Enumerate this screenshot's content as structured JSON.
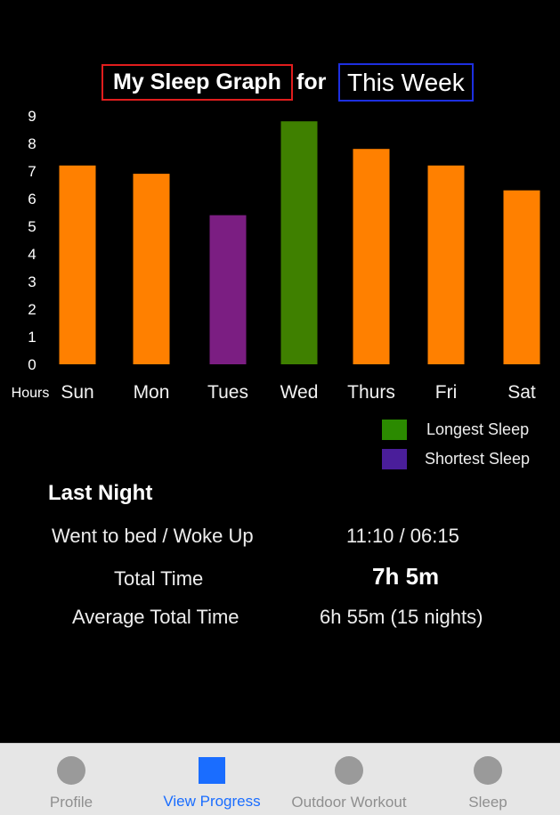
{
  "header": {
    "graph_title": "My Sleep Graph",
    "connector": "for",
    "period": "This Week"
  },
  "chart_data": {
    "type": "bar",
    "categories": [
      "Sun",
      "Mon",
      "Tues",
      "Wed",
      "Thurs",
      "Fri",
      "Sat"
    ],
    "values": [
      7.2,
      6.9,
      5.4,
      8.8,
      7.8,
      7.2,
      6.3
    ],
    "colors": [
      "#ff8000",
      "#ff8000",
      "#7b1e82",
      "#3f8000",
      "#ff8000",
      "#ff8000",
      "#ff8000"
    ],
    "y_ticks": [
      "0",
      "1",
      "2",
      "3",
      "4",
      "5",
      "6",
      "7",
      "8",
      "9"
    ],
    "ylabel": "Hours",
    "ylim": [
      0,
      9
    ],
    "grid": false
  },
  "legend": [
    {
      "label": "Longest Sleep",
      "color": "#2b8a00"
    },
    {
      "label": "Shortest Sleep",
      "color": "#4a1e9a"
    }
  ],
  "last_night": {
    "title": "Last Night",
    "rows": [
      {
        "label": "Went to bed / Woke Up",
        "value": "11:10 / 06:15"
      },
      {
        "label": "Total Time",
        "value": "7h 5m"
      },
      {
        "label": "Average Total Time",
        "value": "6h 55m (15 nights)"
      }
    ]
  },
  "tabs": [
    {
      "label": "Profile",
      "icon": "circle-icon",
      "active": false
    },
    {
      "label": "View Progress",
      "icon": "square-icon",
      "active": true
    },
    {
      "label": "Outdoor Workout",
      "icon": "circle-icon",
      "active": false
    },
    {
      "label": "Sleep",
      "icon": "circle-icon",
      "active": false
    }
  ]
}
